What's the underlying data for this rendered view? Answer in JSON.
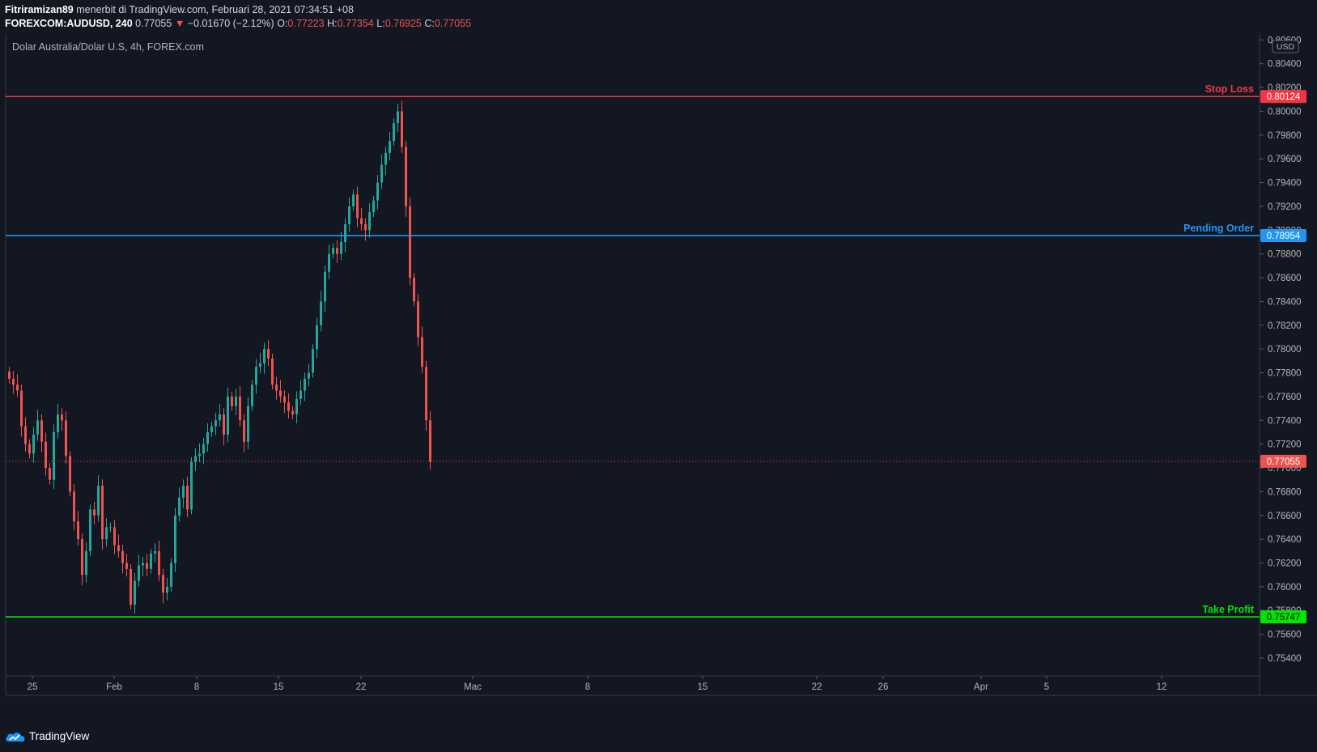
{
  "header": {
    "author": "Fitriramizan89",
    "published_text": "menerbit di TradingView.com, Februari 28, 2021 07:34:51 +08",
    "symbol": "FOREXCOM:AUDUSD, 240",
    "last": "0.77055",
    "change": "−0.01670 (−2.12%)",
    "o_label": "O:",
    "o_value": "0.77223",
    "h_label": "H:",
    "h_value": "0.77354",
    "l_label": "L:",
    "l_value": "0.76925",
    "c_label": "C:",
    "c_value": "0.77055"
  },
  "chart_data": {
    "type": "candlestick",
    "title": "Dolar Australia/Dolar U.S, 4h, FOREX.com",
    "currency": "USD",
    "ylim": [
      0.7525,
      0.8065
    ],
    "y_ticks": [
      "0.80600",
      "0.80400",
      "0.80200",
      "0.80000",
      "0.79800",
      "0.79600",
      "0.79400",
      "0.79200",
      "0.79000",
      "0.78800",
      "0.78600",
      "0.78400",
      "0.78200",
      "0.78000",
      "0.77800",
      "0.77600",
      "0.77400",
      "0.77200",
      "0.77000",
      "0.76800",
      "0.76600",
      "0.76400",
      "0.76200",
      "0.76000",
      "0.75800",
      "0.75600",
      "0.75400"
    ],
    "x_ticks": [
      "25",
      "Feb",
      "8",
      "15",
      "22",
      "Mac",
      "8",
      "15",
      "22",
      "26",
      "Apr",
      "5",
      "12"
    ],
    "last_price": "0.77055",
    "levels": [
      {
        "name": "Stop Loss",
        "value": "0.80124",
        "color": "#f23645"
      },
      {
        "name": "Pending Order",
        "value": "0.78954",
        "color": "#2196f3"
      },
      {
        "name": "Take Profit",
        "value": "0.75747",
        "color": "#00e600"
      }
    ],
    "closes": [
      0.7775,
      0.777,
      0.7765,
      0.7735,
      0.772,
      0.7712,
      0.7728,
      0.774,
      0.7722,
      0.77,
      0.769,
      0.773,
      0.7745,
      0.774,
      0.771,
      0.768,
      0.7655,
      0.764,
      0.761,
      0.763,
      0.7665,
      0.766,
      0.7685,
      0.764,
      0.765,
      0.765,
      0.7635,
      0.763,
      0.762,
      0.7615,
      0.7585,
      0.7605,
      0.7618,
      0.762,
      0.7615,
      0.7628,
      0.763,
      0.761,
      0.7595,
      0.76,
      0.762,
      0.766,
      0.7675,
      0.7685,
      0.7665,
      0.7705,
      0.771,
      0.7712,
      0.772,
      0.773,
      0.7735,
      0.774,
      0.7745,
      0.7728,
      0.776,
      0.7752,
      0.776,
      0.774,
      0.7722,
      0.7752,
      0.777,
      0.7785,
      0.7788,
      0.78,
      0.7792,
      0.777,
      0.7765,
      0.776,
      0.7755,
      0.7748,
      0.7745,
      0.7758,
      0.7765,
      0.7775,
      0.778,
      0.78,
      0.782,
      0.784,
      0.7865,
      0.788,
      0.7885,
      0.788,
      0.789,
      0.7905,
      0.792,
      0.793,
      0.791,
      0.7905,
      0.79,
      0.7915,
      0.7925,
      0.794,
      0.7955,
      0.7965,
      0.7975,
      0.799,
      0.8,
      0.797,
      0.792,
      0.786,
      0.784,
      0.781,
      0.7785,
      0.774,
      0.7705
    ]
  },
  "footer": {
    "brand": "TradingView"
  }
}
